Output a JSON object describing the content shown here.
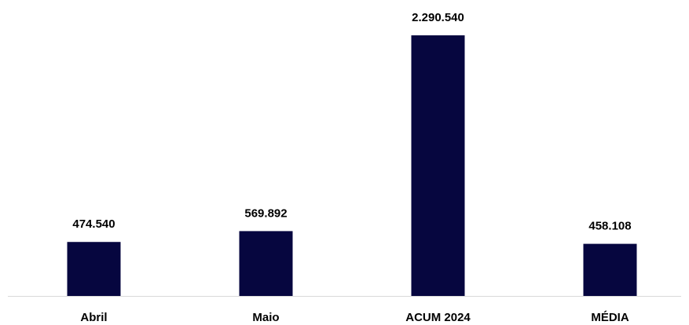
{
  "chart_data": {
    "type": "bar",
    "categories": [
      "Abril",
      "Maio",
      "ACUM 2024",
      "MÉDIA"
    ],
    "values": [
      474540,
      569892,
      2290540,
      458108
    ],
    "value_labels": [
      "474.540",
      "569.892",
      "2.290.540",
      "458.108"
    ],
    "color": "#06063f"
  }
}
